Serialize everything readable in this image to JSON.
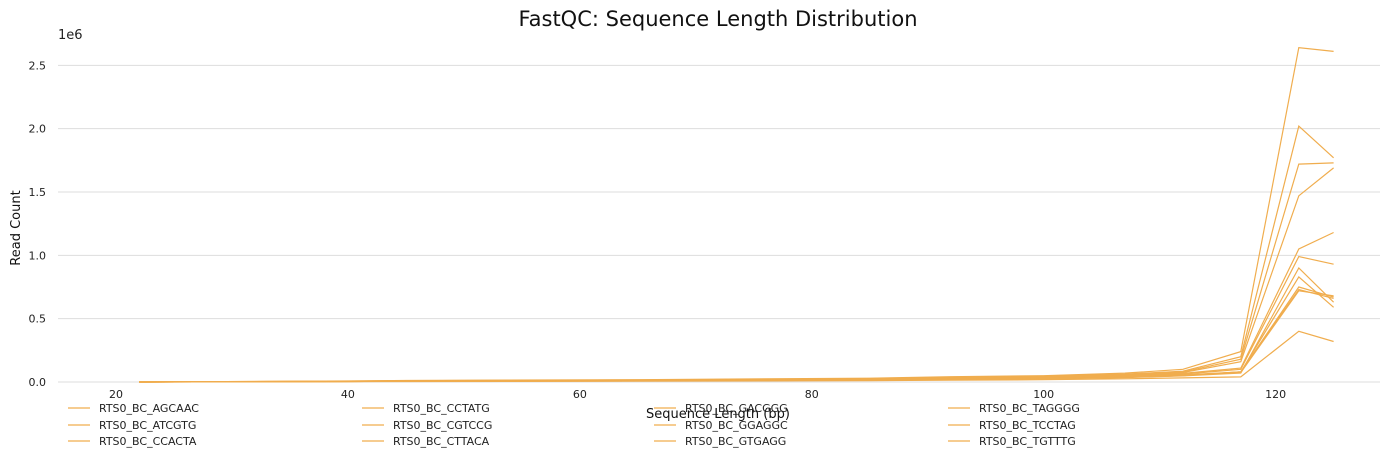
{
  "chart_data": {
    "type": "line",
    "title": "FastQC: Sequence Length Distribution",
    "xlabel": "Sequence Length (bp)",
    "ylabel": "Read Count",
    "y_offset_label": "1e6",
    "xlim": [
      15,
      129
    ],
    "ylim": [
      0,
      2700000
    ],
    "x_ticks": [
      20,
      40,
      60,
      80,
      100,
      120
    ],
    "x_tick_labels": [
      "20",
      "40",
      "60",
      "80",
      "100",
      "120"
    ],
    "y_ticks": [
      0,
      500000,
      1000000,
      1500000,
      2000000,
      2500000
    ],
    "y_tick_labels": [
      "0.0",
      "0.5",
      "1.0",
      "1.5",
      "2.0",
      "2.5"
    ],
    "grid": "horizontal",
    "legend_placement": "bottom",
    "line_color": "#f0ad4e",
    "x": [
      22,
      40,
      45,
      65,
      85,
      92,
      100,
      107,
      112,
      117,
      122,
      125
    ],
    "series": [
      {
        "name": "RTS0_BC_AGCAAC",
        "values": [
          0,
          5000,
          7000,
          10000,
          16000,
          22000,
          28000,
          40000,
          55000,
          80000,
          730000,
          660000
        ]
      },
      {
        "name": "RTS0_BC_ATCGTG",
        "values": [
          0,
          5000,
          7000,
          10000,
          16000,
          22000,
          28000,
          40000,
          55000,
          75000,
          720000,
          680000
        ]
      },
      {
        "name": "RTS0_BC_CCACTA",
        "values": [
          0,
          4000,
          6000,
          9000,
          14000,
          19000,
          24000,
          35000,
          48000,
          70000,
          900000,
          630000
        ]
      },
      {
        "name": "RTS0_BC_CCTATG",
        "values": [
          0,
          6000,
          9000,
          13000,
          22000,
          30000,
          38000,
          55000,
          75000,
          160000,
          1470000,
          1690000
        ]
      },
      {
        "name": "RTS0_BC_CGTCCG",
        "values": [
          0,
          5000,
          8000,
          11000,
          18000,
          26000,
          32000,
          45000,
          62000,
          100000,
          990000,
          930000
        ]
      },
      {
        "name": "RTS0_BC_CTTACA",
        "values": [
          0,
          4000,
          6000,
          9000,
          15000,
          20000,
          26000,
          38000,
          50000,
          80000,
          830000,
          590000
        ]
      },
      {
        "name": "RTS0_BC_GACGGG",
        "values": [
          0,
          8000,
          12000,
          18000,
          30000,
          42000,
          50000,
          70000,
          100000,
          240000,
          2640000,
          2610000
        ]
      },
      {
        "name": "RTS0_BC_GGAGGC",
        "values": [
          0,
          7000,
          10000,
          16000,
          26000,
          36000,
          45000,
          62000,
          85000,
          200000,
          2020000,
          1770000
        ]
      },
      {
        "name": "RTS0_BC_GTGAGG",
        "values": [
          0,
          6000,
          9000,
          14000,
          24000,
          32000,
          42000,
          58000,
          80000,
          180000,
          1720000,
          1730000
        ]
      },
      {
        "name": "RTS0_BC_TAGGGG",
        "values": [
          0,
          5000,
          8000,
          12000,
          20000,
          28000,
          35000,
          50000,
          68000,
          110000,
          1050000,
          1180000
        ]
      },
      {
        "name": "RTS0_BC_TCCTAG",
        "values": [
          0,
          3000,
          4000,
          6000,
          10000,
          14000,
          18000,
          25000,
          32000,
          40000,
          400000,
          320000
        ]
      },
      {
        "name": "RTS0_BC_TGTTTG",
        "values": [
          0,
          4000,
          6000,
          9000,
          15000,
          20000,
          26000,
          38000,
          50000,
          80000,
          750000,
          670000
        ]
      }
    ]
  }
}
